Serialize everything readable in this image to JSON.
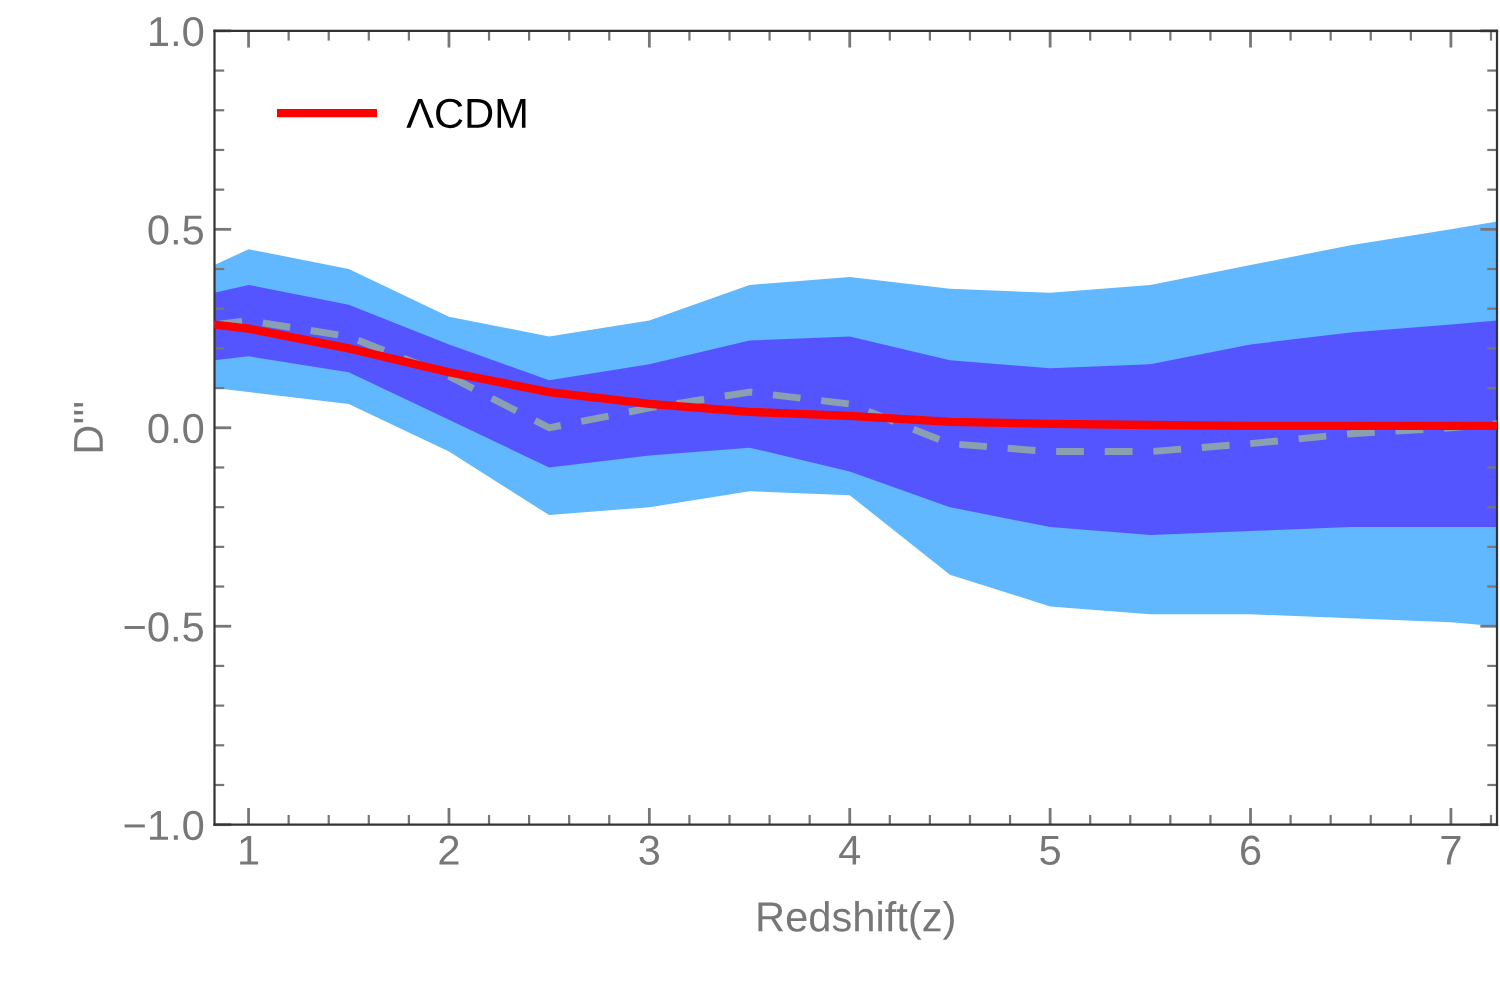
{
  "chart_data": {
    "type": "line",
    "xlabel": "Redshift(z)",
    "ylabel": "D'''",
    "x": [
      0.83,
      1,
      1.5,
      2,
      2.5,
      3,
      3.5,
      4,
      4.5,
      5,
      5.5,
      6,
      6.5,
      7,
      7.23
    ],
    "series": [
      {
        "type": "area",
        "color": "#61b8ff",
        "values": [
          null,
          null,
          null,
          null,
          null,
          null,
          null,
          null,
          null,
          null,
          null,
          null,
          null,
          null,
          null
        ],
        "lower": [
          0.1,
          0.09,
          0.06,
          -0.06,
          -0.22,
          -0.2,
          -0.16,
          -0.17,
          -0.37,
          -0.45,
          -0.47,
          -0.47,
          -0.48,
          -0.49,
          -0.5
        ],
        "upper": [
          0.41,
          0.45,
          0.4,
          0.28,
          0.23,
          0.27,
          0.36,
          0.38,
          0.35,
          0.34,
          0.36,
          0.41,
          0.46,
          0.5,
          0.52
        ]
      },
      {
        "type": "area",
        "color": "#5555ff",
        "values": [
          null,
          null,
          null,
          null,
          null,
          null,
          null,
          null,
          null,
          null,
          null,
          null,
          null,
          null,
          null
        ],
        "lower": [
          0.17,
          0.18,
          0.14,
          0.02,
          -0.1,
          -0.07,
          -0.05,
          -0.11,
          -0.2,
          -0.25,
          -0.27,
          -0.26,
          -0.25,
          -0.25,
          -0.25
        ],
        "upper": [
          0.34,
          0.36,
          0.31,
          0.21,
          0.12,
          0.16,
          0.22,
          0.23,
          0.17,
          0.15,
          0.16,
          0.21,
          0.24,
          0.26,
          0.27
        ]
      },
      {
        "type": "line",
        "color": "#8a9fb0",
        "line_style": "dashed",
        "values": [
          0.26,
          0.27,
          0.23,
          0.13,
          0.0,
          0.05,
          0.09,
          0.06,
          -0.04,
          -0.06,
          -0.06,
          -0.04,
          -0.015,
          0.0,
          0.01
        ]
      },
      {
        "type": "line",
        "name": "ΛCDM",
        "color": "#ff0000",
        "line_style": "solid",
        "values": [
          0.26,
          0.25,
          0.2,
          0.14,
          0.09,
          0.06,
          0.04,
          0.03,
          0.015,
          0.01,
          0.007,
          0.005,
          0.005,
          0.005,
          0.005
        ]
      }
    ],
    "xlim": [
      0.83,
      7.23
    ],
    "ylim": [
      -1.0,
      1.0
    ],
    "xticks": [
      1,
      2,
      3,
      4,
      5,
      6,
      7
    ],
    "yticks": [
      {
        "value": -1.0,
        "label": "−1.0"
      },
      {
        "value": -0.5,
        "label": "−0.5"
      },
      {
        "value": 0.0,
        "label": "0.0"
      },
      {
        "value": 0.5,
        "label": "0.5"
      },
      {
        "value": 1.0,
        "label": "1.0"
      }
    ],
    "grid": false,
    "legend": "top left",
    "marker": "none"
  }
}
